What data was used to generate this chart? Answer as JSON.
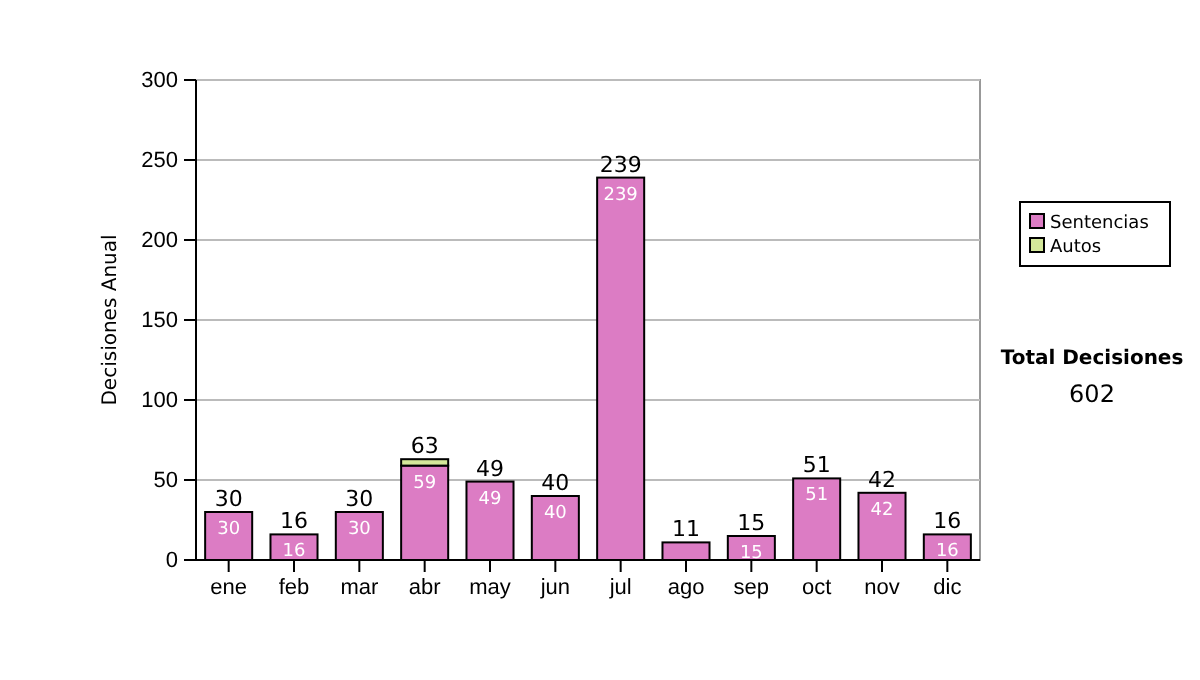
{
  "chart_data": {
    "type": "bar",
    "stacked": true,
    "ylabel": "Decisiones Anual",
    "categories": [
      "ene",
      "feb",
      "mar",
      "abr",
      "may",
      "jun",
      "jul",
      "ago",
      "sep",
      "oct",
      "nov",
      "dic"
    ],
    "series": [
      {
        "name": "Sentencias",
        "color": "#dc7cc4",
        "values": [
          30,
          16,
          30,
          59,
          49,
          40,
          239,
          11,
          15,
          51,
          42,
          16
        ],
        "value_labels": [
          "30",
          "16",
          "30",
          "59",
          "49",
          "40",
          "239",
          null,
          "15",
          "51",
          "42",
          "16"
        ]
      },
      {
        "name": "Autos",
        "color": "#d4e89a",
        "values": [
          0,
          0,
          0,
          4,
          0,
          0,
          0,
          0,
          0,
          0,
          0,
          0
        ]
      }
    ],
    "totals": [
      "30",
      "16",
      "30",
      "63",
      "49",
      "40",
      "239",
      "11",
      "15",
      "51",
      "42",
      "16"
    ],
    "ylim": [
      0,
      300
    ],
    "yticks": [
      0,
      50,
      100,
      150,
      200,
      250,
      300
    ],
    "grid": "y",
    "legend": "right",
    "annotations": [
      "Total Decisiones",
      "602"
    ]
  }
}
